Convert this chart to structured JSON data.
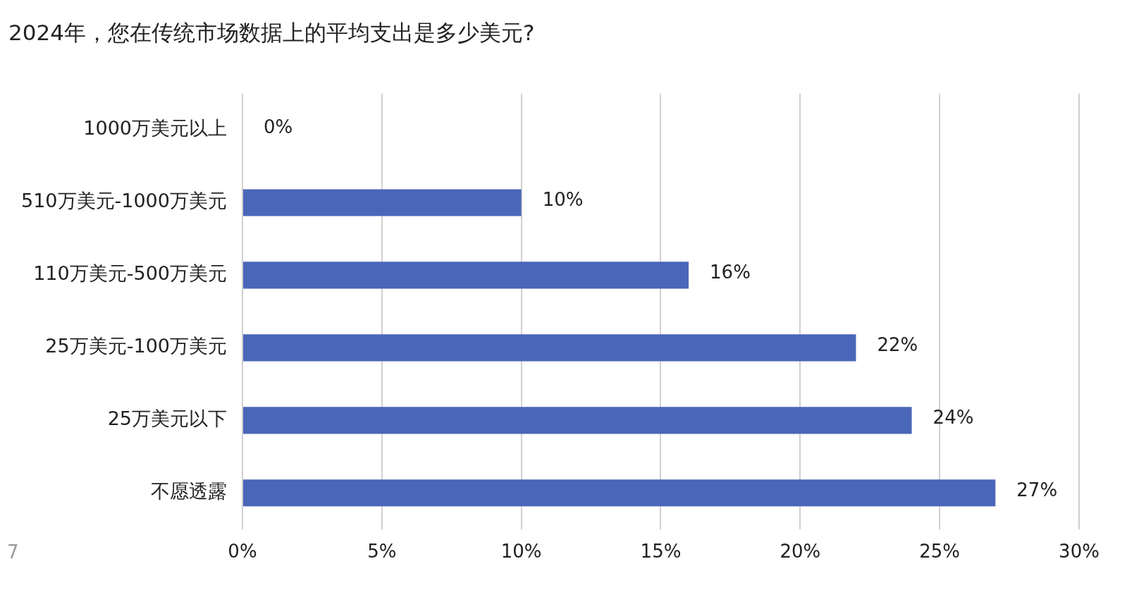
{
  "chart_data": {
    "type": "bar",
    "orientation": "horizontal",
    "title": "2024年，您在传统市场数据上的平均支出是多少美元?",
    "categories": [
      "1000万美元以上",
      "510万美元-1000万美元",
      "110万美元-500万美元",
      "25万美元-100万美元",
      "25万美元以下",
      "不愿透露"
    ],
    "values": [
      0,
      10,
      16,
      22,
      24,
      27
    ],
    "value_labels": [
      "0%",
      "10%",
      "16%",
      "22%",
      "24%",
      "27%"
    ],
    "color": "#4a66b8",
    "xlim": [
      0,
      30
    ],
    "xticks": [
      {
        "value": 0,
        "label": "0%"
      },
      {
        "value": 5,
        "label": "5%"
      },
      {
        "value": 10,
        "label": "10%"
      },
      {
        "value": 15,
        "label": "15%"
      },
      {
        "value": 20,
        "label": "20%"
      },
      {
        "value": 25,
        "label": "25%"
      },
      {
        "value": 30,
        "label": "30%"
      }
    ],
    "grid": "x",
    "legend": false,
    "annotations": [
      "7"
    ]
  }
}
